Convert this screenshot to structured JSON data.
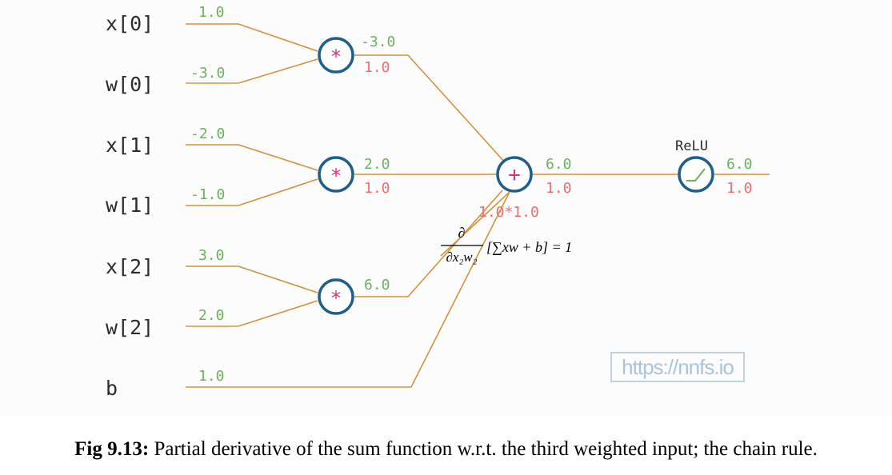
{
  "inputs": [
    {
      "label": "x[0]",
      "value": "1.0"
    },
    {
      "label": "w[0]",
      "value": "-3.0"
    },
    {
      "label": "x[1]",
      "value": "-2.0"
    },
    {
      "label": "w[1]",
      "value": "-1.0"
    },
    {
      "label": "x[2]",
      "value": "3.0"
    },
    {
      "label": "w[2]",
      "value": "2.0"
    },
    {
      "label": "b",
      "value": "1.0"
    }
  ],
  "mul_nodes": [
    {
      "symbol": "*",
      "forward": "-3.0",
      "gradient": "1.0"
    },
    {
      "symbol": "*",
      "forward": "2.0",
      "gradient": "1.0"
    },
    {
      "symbol": "*",
      "forward": "6.0",
      "gradient": ""
    }
  ],
  "sum_node": {
    "symbol": "+",
    "forward": "6.0",
    "gradient": "1.0",
    "chain_product": "1.0*1.0"
  },
  "relu_node": {
    "label": "ReLU",
    "forward": "6.0",
    "gradient": "1.0"
  },
  "derivative": {
    "numerator": "∂",
    "denominator": "∂x₂w₂",
    "expression": "[∑xw + b] = 1"
  },
  "watermark": "https://nnfs.io",
  "caption": {
    "bold": "Fig 9.13:",
    "text": " Partial derivative of the sum function w.r.t. the third weighted input; the chain rule."
  },
  "colors": {
    "edge": "#d4913c",
    "node_ring": "#1f5f8b",
    "op_symbol": "#d5337a",
    "forward_value": "#6bb25a",
    "gradient_value": "#ea6f72",
    "label_dark": "#2c2c2c",
    "label_index": "#9b84c2"
  }
}
